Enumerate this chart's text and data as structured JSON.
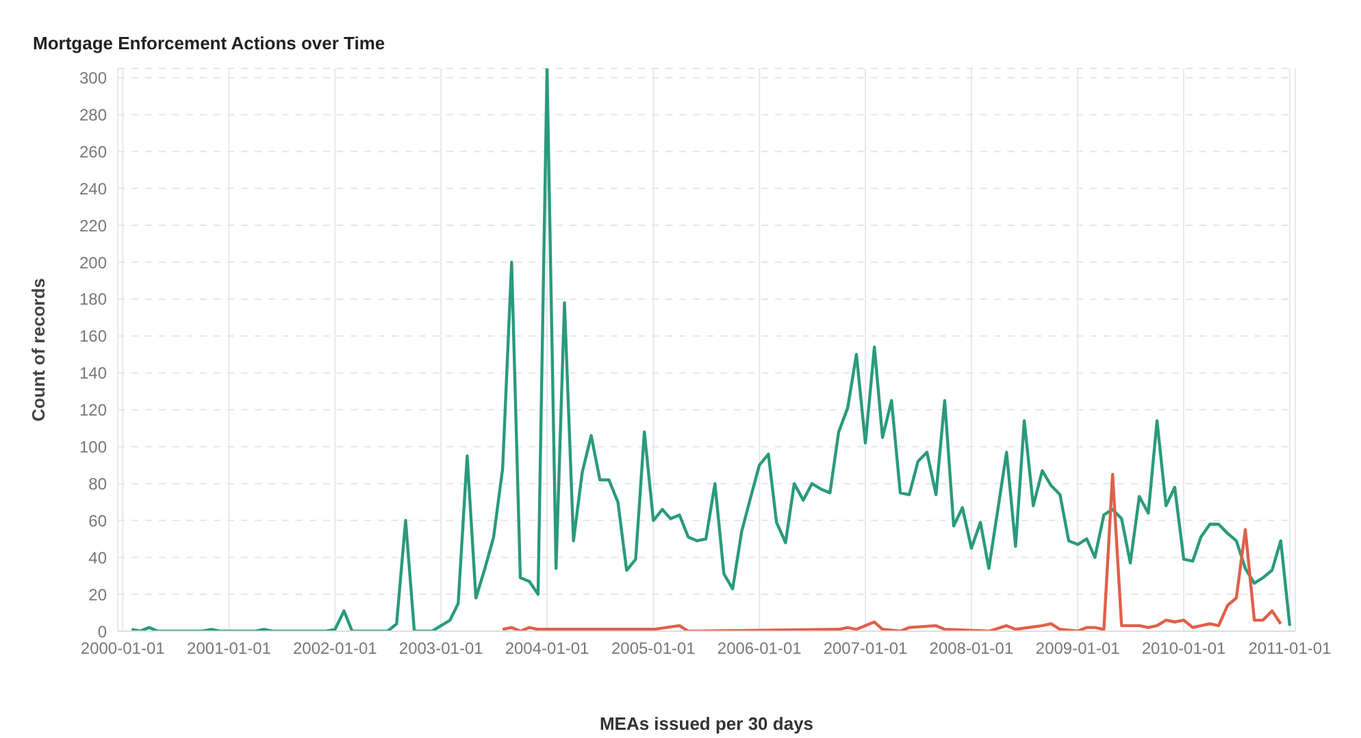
{
  "chart_data": {
    "type": "line",
    "title": "Mortgage Enforcement Actions over Time",
    "xlabel": "MEAs issued per 30 days",
    "ylabel": "Count of records",
    "xlim": [
      "1999-12-15",
      "2011-01-20"
    ],
    "xticks": [
      "2000-01-01",
      "2001-01-01",
      "2002-01-01",
      "2003-01-01",
      "2004-01-01",
      "2005-01-01",
      "2006-01-01",
      "2007-01-01",
      "2008-01-01",
      "2009-01-01",
      "2010-01-01",
      "2011-01-01"
    ],
    "ylim": [
      0,
      305
    ],
    "yticks": [
      0,
      20,
      40,
      60,
      80,
      100,
      120,
      140,
      160,
      180,
      200,
      220,
      240,
      260,
      280,
      300
    ],
    "grid": true,
    "legend": false,
    "marker": "none",
    "line_style": "solid",
    "series": [
      {
        "color": "#2a9a7c",
        "x": [
          "2000-02",
          "2000-03",
          "2000-04",
          "2000-05",
          "2000-10",
          "2000-11",
          "2000-12",
          "2001-04",
          "2001-05",
          "2001-06",
          "2001-12",
          "2002-01",
          "2002-02",
          "2002-03",
          "2002-07",
          "2002-08",
          "2002-09",
          "2002-10",
          "2002-12",
          "2003-01",
          "2003-02",
          "2003-03",
          "2003-04",
          "2003-05",
          "2003-06",
          "2003-07",
          "2003-08",
          "2003-09",
          "2003-10",
          "2003-11",
          "2003-12",
          "2004-01",
          "2004-02",
          "2004-03",
          "2004-04",
          "2004-05",
          "2004-06",
          "2004-07",
          "2004-08",
          "2004-09",
          "2004-10",
          "2004-11",
          "2004-12",
          "2005-01",
          "2005-02",
          "2005-03",
          "2005-04",
          "2005-05",
          "2005-06",
          "2005-07",
          "2005-08",
          "2005-09",
          "2005-10",
          "2005-11",
          "2005-12",
          "2006-01",
          "2006-02",
          "2006-03",
          "2006-04",
          "2006-05",
          "2006-06",
          "2006-07",
          "2006-08",
          "2006-09",
          "2006-10",
          "2006-11",
          "2006-12",
          "2007-01",
          "2007-02",
          "2007-03",
          "2007-04",
          "2007-05",
          "2007-06",
          "2007-07",
          "2007-08",
          "2007-09",
          "2007-10",
          "2007-11",
          "2007-12",
          "2008-01",
          "2008-02",
          "2008-03",
          "2008-04",
          "2008-05",
          "2008-06",
          "2008-07",
          "2008-08",
          "2008-09",
          "2008-10",
          "2008-11",
          "2008-12",
          "2009-01",
          "2009-02",
          "2009-03",
          "2009-04",
          "2009-05",
          "2009-06",
          "2009-07",
          "2009-08",
          "2009-09",
          "2009-10",
          "2009-11",
          "2009-12",
          "2010-01",
          "2010-02",
          "2010-03",
          "2010-04",
          "2010-05",
          "2010-06",
          "2010-07",
          "2010-08",
          "2010-09",
          "2010-10",
          "2010-11",
          "2010-12",
          "2011-01"
        ],
        "values": [
          1,
          0,
          2,
          0,
          0,
          1,
          0,
          0,
          1,
          0,
          0,
          1,
          11,
          0,
          0,
          4,
          60,
          0,
          0,
          3,
          6,
          15,
          95,
          18,
          34,
          51,
          88,
          200,
          29,
          27,
          20,
          305,
          34,
          178,
          49,
          86,
          106,
          82,
          82,
          70,
          33,
          39,
          108,
          60,
          66,
          61,
          63,
          51,
          49,
          50,
          80,
          31,
          23,
          54,
          72,
          90,
          96,
          59,
          48,
          80,
          71,
          80,
          77,
          75,
          108,
          121,
          150,
          102,
          154,
          105,
          125,
          75,
          74,
          92,
          97,
          74,
          125,
          57,
          67,
          45,
          59,
          34,
          66,
          97,
          46,
          114,
          68,
          87,
          79,
          74,
          49,
          47,
          50,
          40,
          63,
          66,
          61,
          37,
          73,
          64,
          114,
          68,
          78,
          39,
          38,
          51,
          58,
          58,
          53,
          49,
          34,
          26,
          29,
          33,
          49,
          3
        ]
      },
      {
        "color": "#e0604a",
        "x": [
          "2003-08",
          "2003-09",
          "2003-10",
          "2003-11",
          "2003-12",
          "2004-07",
          "2005-01",
          "2005-04",
          "2005-05",
          "2006-10",
          "2006-11",
          "2006-12",
          "2007-02",
          "2007-03",
          "2007-05",
          "2007-06",
          "2007-09",
          "2007-10",
          "2008-03",
          "2008-05",
          "2008-06",
          "2008-09",
          "2008-10",
          "2008-11",
          "2009-01",
          "2009-02",
          "2009-03",
          "2009-04",
          "2009-05",
          "2009-06",
          "2009-07",
          "2009-08",
          "2009-09",
          "2009-10",
          "2009-11",
          "2009-12",
          "2010-01",
          "2010-02",
          "2010-03",
          "2010-04",
          "2010-05",
          "2010-06",
          "2010-07",
          "2010-08",
          "2010-09",
          "2010-10",
          "2010-11",
          "2010-12"
        ],
        "values": [
          1,
          2,
          0,
          2,
          1,
          1,
          1,
          3,
          0,
          1,
          2,
          1,
          5,
          1,
          0,
          2,
          3,
          1,
          0,
          3,
          1,
          3,
          4,
          1,
          0,
          2,
          2,
          1,
          85,
          3,
          3,
          3,
          2,
          3,
          6,
          5,
          6,
          2,
          3,
          4,
          3,
          14,
          18,
          55,
          6,
          6,
          11,
          4
        ]
      }
    ]
  }
}
